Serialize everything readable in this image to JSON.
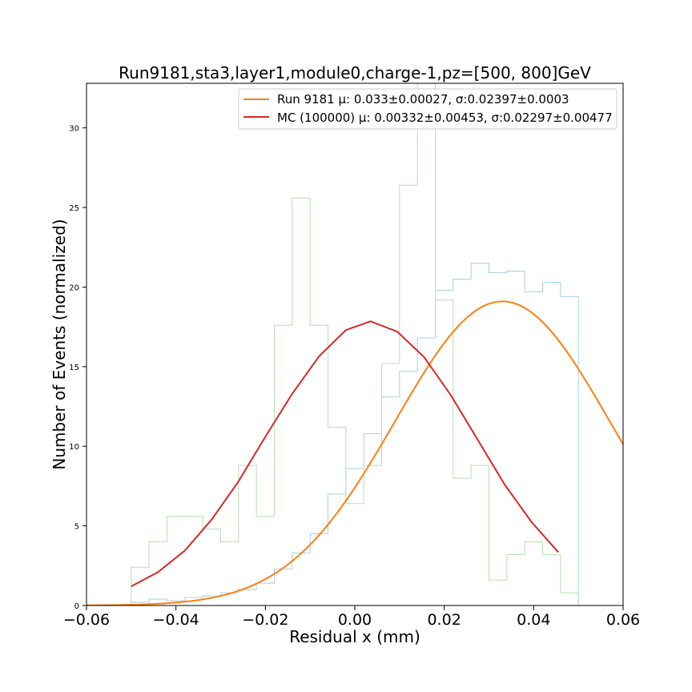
{
  "chart_data": {
    "type": "line",
    "title": "Run9181,sta3,layer1,module0,charge-1,pz=[500, 800]GeV",
    "xlabel": "Residual x (mm)",
    "ylabel": "Number of Events (normalized)",
    "xlim": [
      -0.06,
      0.06
    ],
    "ylim": [
      0,
      32.8
    ],
    "x_ticks": [
      -0.06,
      -0.04,
      -0.02,
      0.0,
      0.02,
      0.04,
      0.06
    ],
    "x_tick_labels": [
      "−0.06",
      "−0.04",
      "−0.02",
      "0.00",
      "0.02",
      "0.04",
      "0.06"
    ],
    "y_ticks": [
      0,
      5,
      10,
      15,
      20,
      25,
      30
    ],
    "y_tick_labels": [
      "0",
      "5",
      "10",
      "15",
      "20",
      "25",
      "30"
    ],
    "grid": false,
    "legend_position": "top-right",
    "series": [
      {
        "name": "Run 9181 μ: 0.033±0.00027, σ:0.02397±0.0003",
        "kind": "gaussian-fit",
        "color": "#ff7f0e",
        "mu": 0.033,
        "sigma": 0.02397,
        "amplitude": 19.1,
        "x_range": [
          -0.06,
          0.06
        ]
      },
      {
        "name": "MC (100000) μ: 0.00332±0.00453, σ:0.02297±0.00477",
        "kind": "line",
        "color": "#d62728",
        "x": [
          -0.05,
          -0.044,
          -0.038,
          -0.032,
          -0.026,
          -0.02,
          -0.014,
          -0.008,
          -0.002,
          0.0035,
          0.0095,
          0.0155,
          0.0215,
          0.0275,
          0.0335,
          0.0395,
          0.0455
        ],
        "y": [
          1.2,
          2.1,
          3.45,
          5.4,
          7.8,
          10.6,
          13.3,
          15.65,
          17.3,
          17.85,
          17.2,
          15.6,
          13.2,
          10.4,
          7.6,
          5.25,
          3.35
        ]
      },
      {
        "kind": "step-histogram",
        "color": "#a6cfe3",
        "bin_edges": [
          -0.05,
          -0.046,
          -0.042,
          -0.038,
          -0.034,
          -0.03,
          -0.026,
          -0.022,
          -0.018,
          -0.014,
          -0.01,
          -0.006,
          -0.002,
          0.002,
          0.006,
          0.01,
          0.014,
          0.018,
          0.022,
          0.026,
          0.03,
          0.034,
          0.038,
          0.042,
          0.046,
          0.05
        ],
        "values": [
          0.2,
          0.4,
          0.3,
          0.5,
          0.6,
          0.8,
          1.0,
          1.4,
          2.3,
          3.3,
          4.5,
          7.0,
          8.6,
          10.8,
          13.1,
          14.7,
          16.8,
          19.8,
          20.5,
          21.5,
          20.9,
          21.0,
          19.7,
          20.3,
          19.4
        ]
      },
      {
        "kind": "step-histogram",
        "color": "#b5e0b0",
        "bin_edges": [
          -0.05,
          -0.046,
          -0.042,
          -0.038,
          -0.034,
          -0.03,
          -0.026,
          -0.022,
          -0.018,
          -0.014,
          -0.01,
          -0.006,
          -0.002,
          0.002,
          0.006,
          0.01,
          0.014,
          0.018,
          0.022,
          0.026,
          0.03,
          0.034,
          0.038,
          0.042,
          0.046,
          0.05
        ],
        "values": [
          2.4,
          4.0,
          5.6,
          5.6,
          4.8,
          4.0,
          8.8,
          5.6,
          17.6,
          25.6,
          17.6,
          11.2,
          6.4,
          8.8,
          15.2,
          26.4,
          33.0,
          19.2,
          8.0,
          8.8,
          1.6,
          3.2,
          4.0,
          3.2,
          0.8
        ]
      }
    ]
  }
}
